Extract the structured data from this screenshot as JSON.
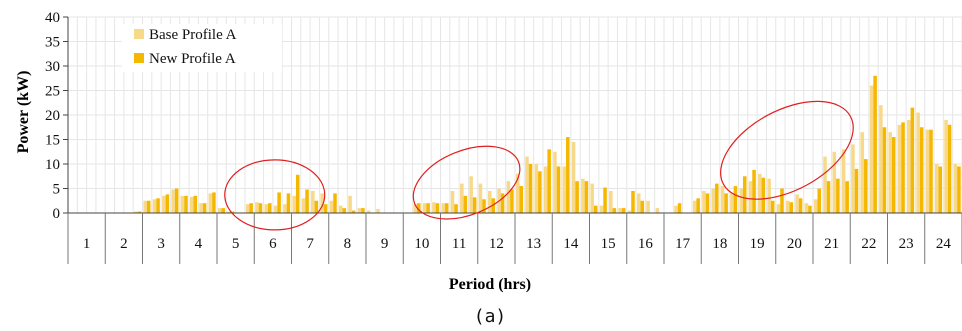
{
  "chart_data": {
    "type": "bar",
    "xlabel": "Period (hrs)",
    "ylabel": "Power (kW)",
    "caption": "(a)",
    "ylim": [
      0,
      40
    ],
    "yticks": [
      0,
      5,
      10,
      15,
      20,
      25,
      30,
      35,
      40
    ],
    "hour_labels": [
      "1",
      "2",
      "3",
      "4",
      "5",
      "6",
      "7",
      "8",
      "9",
      "10",
      "11",
      "12",
      "13",
      "14",
      "15",
      "16",
      "17",
      "18",
      "19",
      "20",
      "21",
      "22",
      "23",
      "24"
    ],
    "samples_per_hour": 4,
    "legend_position": "top-left",
    "grid": true,
    "series": [
      {
        "name": "Base Profile A",
        "color": "#f8d98a",
        "values": [
          0,
          0,
          0,
          0,
          0,
          0,
          0,
          0.3,
          2.5,
          2.8,
          3.5,
          4.8,
          3.5,
          3.3,
          2.0,
          4.0,
          1.0,
          0.3,
          0,
          1.8,
          2.2,
          1.8,
          1.5,
          1.8,
          3.5,
          3.0,
          4.5,
          4.0,
          2.5,
          1.5,
          3.5,
          1.0,
          0.5,
          0.8,
          0,
          0,
          0,
          1.8,
          2.0,
          2.2,
          2.0,
          4.5,
          6.0,
          7.5,
          6.0,
          4.5,
          5.0,
          6.5,
          8.0,
          11.5,
          10.0,
          9.5,
          12.5,
          9.5,
          14.5,
          7.0,
          6.0,
          1.5,
          4.5,
          1.0,
          0.5,
          4.0,
          2.5,
          1.0,
          0,
          1.5,
          0,
          2.5,
          4.5,
          5.0,
          5.5,
          4.0,
          5.0,
          6.5,
          8.0,
          7.0,
          1.8,
          2.5,
          3.8,
          2.0,
          2.8,
          11.5,
          12.5,
          13.0,
          14.0,
          16.5,
          26.0,
          22.0,
          16.5,
          18.0,
          19.0,
          20.5,
          17.0,
          10.0,
          19.0,
          10.0,
          9.0,
          4.0,
          5.0,
          5.0,
          2.5,
          0.5,
          0.3,
          0.8
        ]
      },
      {
        "name": "New Profile A",
        "color": "#f5b800",
        "values": [
          0,
          0,
          0,
          0,
          0,
          0,
          0,
          0.3,
          2.5,
          3.0,
          3.8,
          5.0,
          3.5,
          3.5,
          2.0,
          4.2,
          1.0,
          0.3,
          0,
          2.0,
          2.0,
          2.0,
          4.2,
          4.0,
          7.8,
          4.8,
          2.5,
          1.8,
          4.0,
          1.0,
          0.5,
          1.0,
          0,
          0,
          0,
          0,
          0,
          2.0,
          2.0,
          2.0,
          2.0,
          1.8,
          3.5,
          3.2,
          2.8,
          3.0,
          4.0,
          4.8,
          5.5,
          10.0,
          8.5,
          13.0,
          9.5,
          15.5,
          6.5,
          6.5,
          1.5,
          5.2,
          1.0,
          1.0,
          4.5,
          2.5,
          0,
          0,
          0,
          2.0,
          0,
          3.0,
          4.0,
          6.0,
          4.0,
          5.5,
          7.5,
          8.8,
          7.2,
          2.5,
          5.0,
          2.2,
          3.0,
          1.5,
          5.0,
          6.5,
          7.0,
          6.5,
          9.0,
          11.0,
          28.0,
          17.5,
          15.5,
          18.5,
          21.5,
          17.5,
          17.0,
          9.5,
          18.0,
          9.5,
          8.5,
          4.0,
          5.5,
          3.2,
          1.0,
          0.5,
          0.3,
          0.5
        ]
      }
    ]
  }
}
